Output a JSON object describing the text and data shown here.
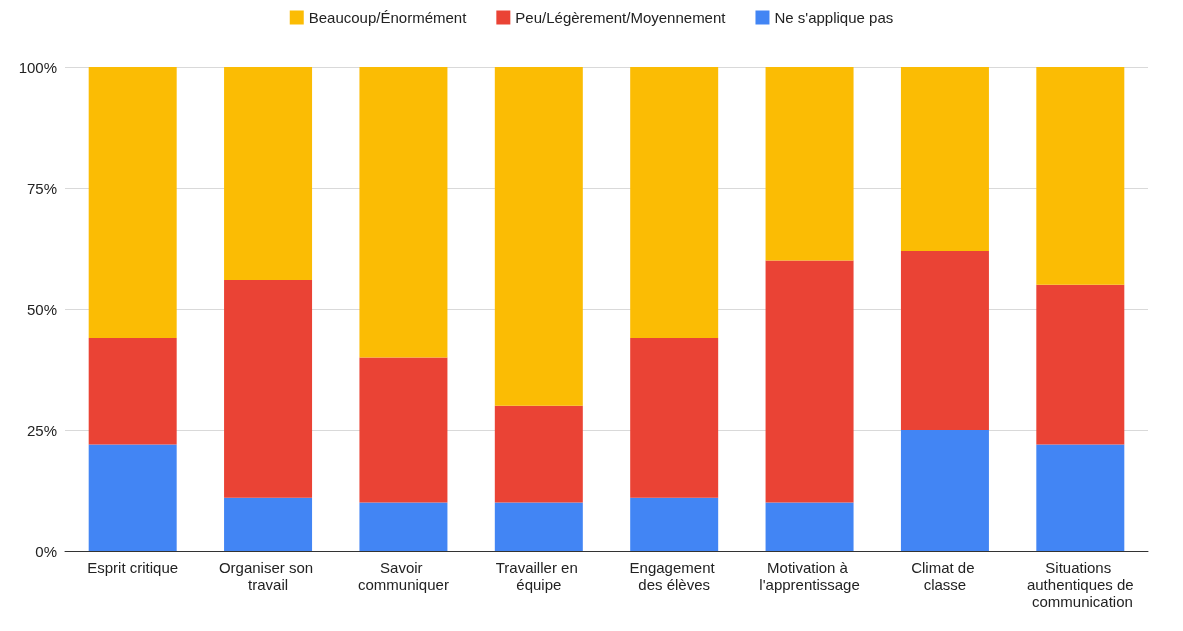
{
  "chart_data": {
    "type": "bar",
    "stacked": true,
    "categories": [
      "Esprit critique",
      "Organiser son travail",
      "Savoir communiquer",
      "Travailler en équipe",
      "Engagement des élèves",
      "Motivation à l'apprentissage",
      "Climat de classe",
      "Situations authentiques de communication"
    ],
    "series": [
      {
        "name": "Ne s'applique pas",
        "color": "#4285f4",
        "values": [
          22,
          11,
          10,
          10,
          11,
          10,
          25,
          22
        ]
      },
      {
        "name": "Peu/Légèrement/Moyennement",
        "color": "#ea4335",
        "values": [
          22,
          45,
          30,
          20,
          33,
          50,
          37,
          33
        ]
      },
      {
        "name": "Beaucoup/Énormément",
        "color": "#fbbc04",
        "values": [
          56,
          44,
          60,
          70,
          56,
          40,
          38,
          45
        ]
      }
    ],
    "ylim": [
      0,
      100
    ],
    "yticks": [
      {
        "value": 0,
        "label": "0%"
      },
      {
        "value": 25,
        "label": "25%"
      },
      {
        "value": 50,
        "label": "50%"
      },
      {
        "value": 75,
        "label": "75%"
      },
      {
        "value": 100,
        "label": "100%"
      }
    ],
    "grid": "y",
    "legend": "top"
  }
}
